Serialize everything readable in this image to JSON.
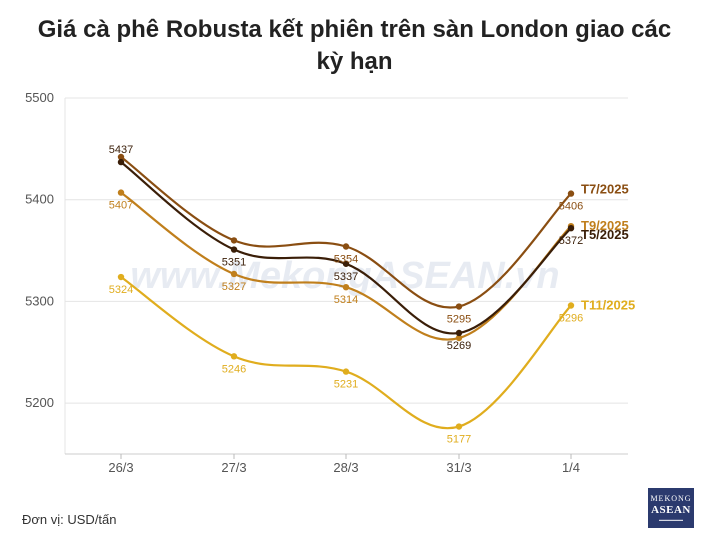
{
  "title": "Giá cà phê Robusta kết phiên trên sàn London giao các kỳ hạn",
  "unit_label": "Đơn vị: USD/tấn",
  "watermark": "www.MekongASEAN.vn",
  "logo": {
    "line1": "MEKONG",
    "line2": "ASEAN"
  },
  "chart_data": {
    "type": "line",
    "categories": [
      "26/3",
      "27/3",
      "28/3",
      "31/3",
      "1/4"
    ],
    "ylim": [
      5150,
      5500
    ],
    "yticks": [
      5200,
      5300,
      5400,
      5500
    ],
    "grid": true,
    "series": [
      {
        "name": "T7/2025",
        "color": "#8a4e12",
        "values": [
          5442,
          5360,
          5354,
          5295,
          5406
        ]
      },
      {
        "name": "T9/2025",
        "color": "#c07f1c",
        "values": [
          5407,
          5327,
          5314,
          5264,
          5374
        ]
      },
      {
        "name": "T5/2025",
        "color": "#3a1e08",
        "values": [
          5437,
          5351,
          5337,
          5269,
          5372
        ]
      },
      {
        "name": "T11/2025",
        "color": "#e0ad1e",
        "values": [
          5324,
          5246,
          5231,
          5177,
          5296
        ]
      }
    ],
    "data_labels": [
      {
        "series": 2,
        "index": 0,
        "value": "5437",
        "pos": "above"
      },
      {
        "series": 1,
        "index": 0,
        "value": "5407",
        "pos": "below"
      },
      {
        "series": 3,
        "index": 0,
        "value": "5324",
        "pos": "below"
      },
      {
        "series": 2,
        "index": 1,
        "value": "5351",
        "pos": "below"
      },
      {
        "series": 1,
        "index": 1,
        "value": "5327",
        "pos": "below"
      },
      {
        "series": 3,
        "index": 1,
        "value": "5246",
        "pos": "below"
      },
      {
        "series": 0,
        "index": 2,
        "value": "5354",
        "pos": "below"
      },
      {
        "series": 2,
        "index": 2,
        "value": "5337",
        "pos": "below"
      },
      {
        "series": 1,
        "index": 2,
        "value": "5314",
        "pos": "below"
      },
      {
        "series": 3,
        "index": 2,
        "value": "5231",
        "pos": "below"
      },
      {
        "series": 0,
        "index": 3,
        "value": "5295",
        "pos": "below"
      },
      {
        "series": 2,
        "index": 3,
        "value": "5269",
        "pos": "below"
      },
      {
        "series": 3,
        "index": 3,
        "value": "5177",
        "pos": "below"
      },
      {
        "series": 0,
        "index": 4,
        "value": "5406",
        "pos": "below"
      },
      {
        "series": 2,
        "index": 4,
        "value": "5372",
        "pos": "below"
      },
      {
        "series": 3,
        "index": 4,
        "value": "5296",
        "pos": "below"
      }
    ]
  }
}
